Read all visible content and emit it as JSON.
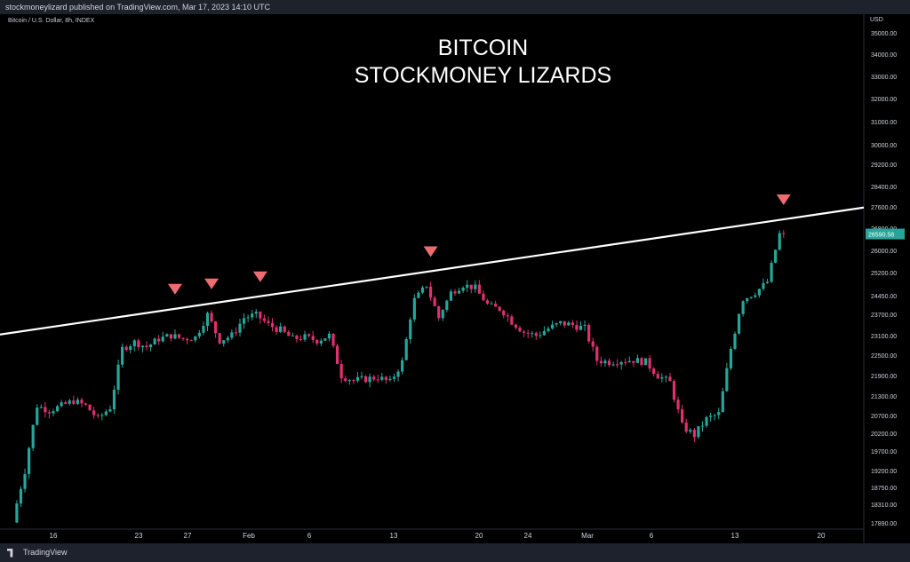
{
  "header": {
    "published_by": "stockmoneylizard published on TradingView.com, Mar 17, 2023 14:10 UTC"
  },
  "symbol_info": "Bitcoin / U.S. Dollar, 8h, INDEX",
  "title_lines": [
    "BITCOIN",
    "STOCKMONEY LIZARDS"
  ],
  "currency": "USD",
  "footer": {
    "brand": "TradingView"
  },
  "colors": {
    "up": "#26a69a",
    "down": "#ef5350",
    "down_candle": "#e0306e",
    "marker": "#f06a72",
    "trendline": "#ffffff",
    "last_price": "#26a69a"
  },
  "chart_data": {
    "type": "candlestick",
    "symbol": "BTCUSD",
    "interval": "8h",
    "y_ticks": [
      "35000.00",
      "34000.00",
      "33000.00",
      "32000.00",
      "31000.00",
      "30000.00",
      "29200.00",
      "28400.00",
      "27600.00",
      "26800.00",
      "26000.00",
      "25200.00",
      "24450.00",
      "23700.00",
      "23100.00",
      "22500.00",
      "21900.00",
      "21300.00",
      "20700.00",
      "20200.00",
      "19700.00",
      "19200.00",
      "18750.00",
      "18310.00",
      "17890.00"
    ],
    "x_ticks": [
      "16",
      "23",
      "27",
      "Feb",
      "6",
      "13",
      "20",
      "24",
      "Mar",
      "6",
      "13",
      "20"
    ],
    "last_price": "26590.58",
    "trendline": {
      "start": [
        "Jan 13",
        23200
      ],
      "end": [
        "Mar 18",
        27200
      ]
    },
    "resistance_touch_markers": [
      "Jan 26",
      "Jan 29",
      "Feb 2",
      "Feb 16",
      "Mar 17"
    ],
    "price_path": [
      [
        "Jan 13",
        17900
      ],
      [
        "Jan 14",
        19200
      ],
      [
        "Jan 15",
        21000
      ],
      [
        "Jan 16",
        20850
      ],
      [
        "Jan 18",
        21150
      ],
      [
        "Jan 19",
        21000
      ],
      [
        "Jan 20",
        20600
      ],
      [
        "Jan 21",
        20950
      ],
      [
        "Jan 22",
        22700
      ],
      [
        "Jan 23",
        22900
      ],
      [
        "Jan 24",
        22750
      ],
      [
        "Jan 25",
        23000
      ],
      [
        "Jan 26",
        23100
      ],
      [
        "Jan 27",
        23000
      ],
      [
        "Jan 28",
        23050
      ],
      [
        "Jan 29",
        23700
      ],
      [
        "Jan 30",
        22950
      ],
      [
        "Jan 31",
        23100
      ],
      [
        "Feb 1",
        23600
      ],
      [
        "Feb 2",
        23700
      ],
      [
        "Feb 3",
        23400
      ],
      [
        "Feb 4",
        23250
      ],
      [
        "Feb 5",
        23000
      ],
      [
        "Feb 6",
        23050
      ],
      [
        "Feb 7",
        22950
      ],
      [
        "Feb 8",
        23100
      ],
      [
        "Feb 9",
        21900
      ],
      [
        "Feb 10",
        21750
      ],
      [
        "Feb 11",
        21800
      ],
      [
        "Feb 12",
        21850
      ],
      [
        "Feb 13",
        21700
      ],
      [
        "Feb 14",
        22300
      ],
      [
        "Feb 15",
        24300
      ],
      [
        "Feb 16",
        24800
      ],
      [
        "Feb 17",
        23600
      ],
      [
        "Feb 18",
        24550
      ],
      [
        "Feb 19",
        24800
      ],
      [
        "Feb 20",
        24700
      ],
      [
        "Feb 21",
        24100
      ],
      [
        "Feb 22",
        23900
      ],
      [
        "Feb 23",
        23500
      ],
      [
        "Feb 24",
        23200
      ],
      [
        "Feb 25",
        23100
      ],
      [
        "Feb 26",
        23300
      ],
      [
        "Feb 27",
        23450
      ],
      [
        "Feb 28",
        23400
      ],
      [
        "Mar 1",
        23300
      ],
      [
        "Mar 2",
        22350
      ],
      [
        "Mar 3",
        22300
      ],
      [
        "Mar 4",
        22350
      ],
      [
        "Mar 5",
        22350
      ],
      [
        "Mar 6",
        22300
      ],
      [
        "Mar 7",
        21900
      ],
      [
        "Mar 8",
        21700
      ],
      [
        "Mar 9",
        20400
      ],
      [
        "Mar 10",
        20150
      ],
      [
        "Mar 11",
        20600
      ],
      [
        "Mar 12",
        20750
      ],
      [
        "Mar 13",
        22700
      ],
      [
        "Mar 14",
        24300
      ],
      [
        "Mar 15",
        24550
      ],
      [
        "Mar 16",
        24900
      ],
      [
        "Mar 17",
        26590
      ]
    ]
  }
}
